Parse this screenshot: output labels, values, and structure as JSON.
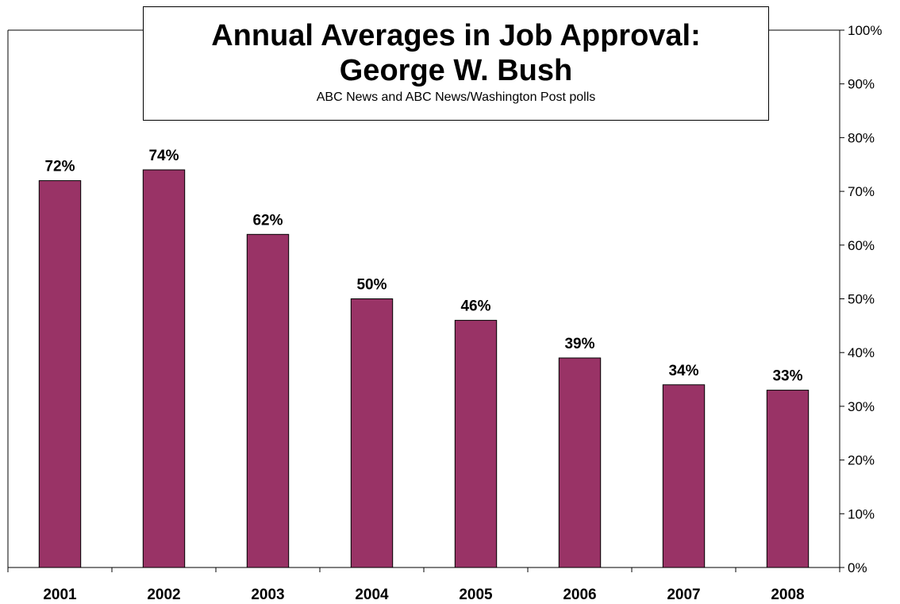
{
  "chart_data": {
    "type": "bar",
    "title_line1": "Annual Averages in Job Approval:",
    "title_line2": "George W. Bush",
    "subtitle": "ABC News and ABC News/Washington Post polls",
    "categories": [
      "2001",
      "2002",
      "2003",
      "2004",
      "2005",
      "2006",
      "2007",
      "2008"
    ],
    "values": [
      72,
      74,
      62,
      50,
      46,
      39,
      34,
      33
    ],
    "data_labels": [
      "72%",
      "74%",
      "62%",
      "50%",
      "46%",
      "39%",
      "34%",
      "33%"
    ],
    "ylim": [
      0,
      100
    ],
    "y_ticks": [
      "0%",
      "10%",
      "20%",
      "30%",
      "40%",
      "50%",
      "60%",
      "70%",
      "80%",
      "90%",
      "100%"
    ],
    "y_axis_side": "right",
    "grid": false,
    "bar_color": "#993366"
  }
}
